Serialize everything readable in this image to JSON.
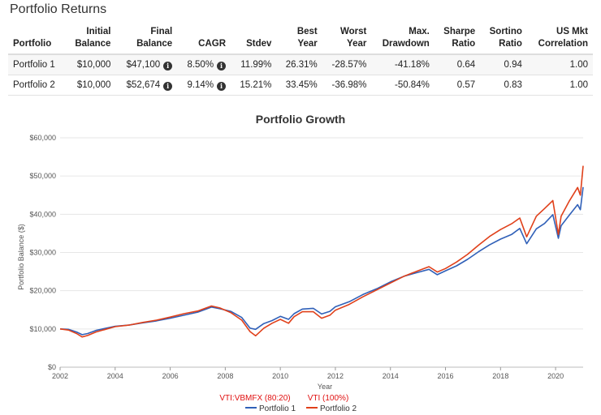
{
  "section_title": "Portfolio Returns",
  "table": {
    "headers": [
      {
        "line1": "",
        "line2": "Portfolio",
        "align": "l"
      },
      {
        "line1": "Initial",
        "line2": "Balance",
        "align": "r"
      },
      {
        "line1": "Final",
        "line2": "Balance",
        "align": "r"
      },
      {
        "line1": "",
        "line2": "CAGR",
        "align": "r"
      },
      {
        "line1": "",
        "line2": "Stdev",
        "align": "r"
      },
      {
        "line1": "Best",
        "line2": "Year",
        "align": "r"
      },
      {
        "line1": "Worst",
        "line2": "Year",
        "align": "r"
      },
      {
        "line1": "Max.",
        "line2": "Drawdown",
        "align": "r"
      },
      {
        "line1": "Sharpe",
        "line2": "Ratio",
        "align": "r"
      },
      {
        "line1": "Sortino",
        "line2": "Ratio",
        "align": "r"
      },
      {
        "line1": "US Mkt",
        "line2": "Correlation",
        "align": "r"
      }
    ],
    "rows": [
      {
        "portfolio": "Portfolio 1",
        "initial": "$10,000",
        "final": "$47,100",
        "cagr": "8.50%",
        "stdev": "11.99%",
        "best": "26.31%",
        "worst": "-28.57%",
        "drawdown": "-41.18%",
        "sharpe": "0.64",
        "sortino": "0.94",
        "corr": "1.00"
      },
      {
        "portfolio": "Portfolio 2",
        "initial": "$10,000",
        "final": "$52,674",
        "cagr": "9.14%",
        "stdev": "15.21%",
        "best": "33.45%",
        "worst": "-36.98%",
        "drawdown": "-50.84%",
        "sharpe": "0.57",
        "sortino": "0.83",
        "corr": "1.00"
      }
    ],
    "info_icon": "info-circle-icon"
  },
  "chart_data": {
    "type": "line",
    "title": "Portfolio Growth",
    "xlabel": "Year",
    "ylabel": "Portfolio Balance ($)",
    "xlim": [
      2002,
      2021
    ],
    "ylim": [
      0,
      60000
    ],
    "x_ticks": [
      2002,
      2004,
      2006,
      2008,
      2010,
      2012,
      2014,
      2016,
      2018,
      2020
    ],
    "y_ticks": [
      0,
      10000,
      20000,
      30000,
      40000,
      50000,
      60000
    ],
    "y_tick_labels": [
      "$0",
      "$10,000",
      "$20,000",
      "$30,000",
      "$40,000",
      "$50,000",
      "$60,000"
    ],
    "grid": true,
    "legend_subtitles": [
      "VTI:VBMFX (80:20)",
      "VTI (100%)"
    ],
    "legend_position": "bottom",
    "series": [
      {
        "name": "Portfolio 1",
        "color": "#3060b8",
        "x": [
          2002.0,
          2002.3,
          2002.6,
          2002.8,
          2003.0,
          2003.3,
          2003.6,
          2004.0,
          2004.5,
          2005.0,
          2005.5,
          2006.0,
          2006.5,
          2007.0,
          2007.5,
          2007.8,
          2008.2,
          2008.6,
          2008.9,
          2009.1,
          2009.4,
          2009.7,
          2010.0,
          2010.3,
          2010.5,
          2010.8,
          2011.2,
          2011.5,
          2011.8,
          2012.0,
          2012.5,
          2013.0,
          2013.5,
          2014.0,
          2014.5,
          2015.0,
          2015.4,
          2015.7,
          2016.0,
          2016.4,
          2016.8,
          2017.2,
          2017.6,
          2018.0,
          2018.4,
          2018.7,
          2018.95,
          2019.3,
          2019.6,
          2019.9,
          2020.1,
          2020.2,
          2020.5,
          2020.8,
          2020.9,
          2021.0
        ],
        "y": [
          10000,
          9900,
          9200,
          8500,
          8800,
          9600,
          10100,
          10700,
          11000,
          11600,
          12100,
          12800,
          13600,
          14400,
          15700,
          15300,
          14600,
          13000,
          10200,
          9900,
          11400,
          12200,
          13300,
          12500,
          14000,
          15200,
          15400,
          13900,
          14600,
          15800,
          17100,
          19000,
          20500,
          22300,
          23800,
          24800,
          25600,
          24200,
          25200,
          26500,
          28200,
          30200,
          32000,
          33500,
          34700,
          36300,
          32300,
          36200,
          37600,
          39900,
          33700,
          37000,
          39800,
          42500,
          41200,
          47100
        ]
      },
      {
        "name": "Portfolio 2",
        "color": "#e0401a",
        "x": [
          2002.0,
          2002.3,
          2002.6,
          2002.8,
          2003.0,
          2003.3,
          2003.6,
          2004.0,
          2004.5,
          2005.0,
          2005.5,
          2006.0,
          2006.5,
          2007.0,
          2007.5,
          2007.8,
          2008.2,
          2008.6,
          2008.9,
          2009.1,
          2009.4,
          2009.7,
          2010.0,
          2010.3,
          2010.5,
          2010.8,
          2011.2,
          2011.5,
          2011.8,
          2012.0,
          2012.5,
          2013.0,
          2013.5,
          2014.0,
          2014.5,
          2015.0,
          2015.4,
          2015.7,
          2016.0,
          2016.4,
          2016.8,
          2017.2,
          2017.6,
          2018.0,
          2018.4,
          2018.7,
          2018.95,
          2019.3,
          2019.6,
          2019.9,
          2020.1,
          2020.2,
          2020.5,
          2020.8,
          2020.9,
          2021.0
        ],
        "y": [
          10000,
          9700,
          8800,
          7900,
          8300,
          9200,
          9800,
          10600,
          11000,
          11700,
          12300,
          13100,
          14000,
          14700,
          16000,
          15500,
          14300,
          12300,
          9300,
          8200,
          10200,
          11500,
          12500,
          11500,
          13200,
          14500,
          14500,
          12800,
          13600,
          14900,
          16400,
          18400,
          20200,
          22000,
          23800,
          25200,
          26300,
          24900,
          25800,
          27500,
          29500,
          31900,
          34200,
          36000,
          37500,
          39000,
          34100,
          39500,
          41500,
          43600,
          34700,
          39500,
          43500,
          47000,
          45000,
          52674
        ]
      }
    ]
  }
}
